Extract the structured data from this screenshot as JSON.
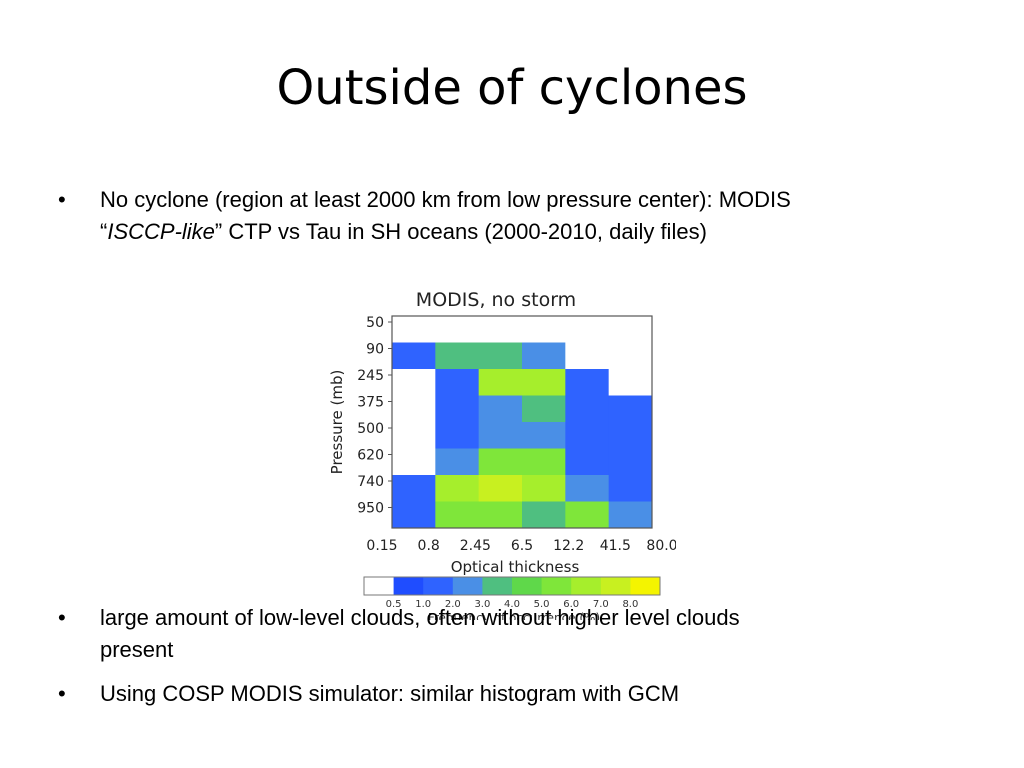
{
  "slide": {
    "title": "Outside of cyclones",
    "bullets": [
      {
        "line1": "No cyclone (region at least 2000 km from low pressure center): MODIS",
        "quote_open": "“",
        "italic": "ISCCP-like",
        "quote_close": "”",
        "line2_rest": " CTP vs Tau in SH oceans (2000-2010, daily files)"
      },
      {
        "line1": "large amount of low-level clouds, often without higher level clouds",
        "line2": "present"
      },
      {
        "line1": "Using COSP MODIS simulator: similar histogram with GCM"
      }
    ],
    "bullet_char": "•"
  },
  "chart_data": {
    "type": "heatmap",
    "title": "MODIS, no storm",
    "xlabel": "Optical thickness",
    "ylabel": "Pressure (mb)",
    "x_ticks": [
      "0.15",
      "0.8",
      "2.45",
      "6.5",
      "12.2",
      "41.5",
      "80.0"
    ],
    "y_ticks": [
      "50",
      "90",
      "245",
      "375",
      "500",
      "620",
      "740",
      "950"
    ],
    "colorbar": {
      "ticks": [
        "0.5",
        "1.0",
        "2.0",
        "3.0",
        "4.0",
        "5.0",
        "6.0",
        "7.0",
        "8.0"
      ],
      "label": "Frequency of occurrence (%)",
      "colors": [
        "#ffffff",
        "#1f4dff",
        "#2f63ff",
        "#4a8fe6",
        "#4fbf80",
        "#5fd84a",
        "#7fe63a",
        "#a6ee2c",
        "#c8f020",
        "#f4f400"
      ]
    },
    "cells": [
      [
        null,
        null,
        null,
        null,
        null,
        null
      ],
      [
        1.0,
        3.5,
        3.5,
        2.5,
        0.3,
        0.3
      ],
      [
        0.3,
        1.5,
        6.0,
        6.0,
        1.5,
        0.3
      ],
      [
        0.3,
        1.0,
        2.5,
        3.5,
        1.5,
        1.0
      ],
      [
        0.3,
        1.5,
        2.5,
        2.5,
        1.5,
        1.0
      ],
      [
        0.3,
        2.5,
        5.5,
        5.5,
        1.5,
        1.0
      ],
      [
        1.0,
        6.0,
        7.0,
        6.0,
        2.5,
        1.0
      ],
      [
        1.5,
        5.5,
        5.5,
        3.5,
        5.5,
        2.5
      ]
    ]
  }
}
